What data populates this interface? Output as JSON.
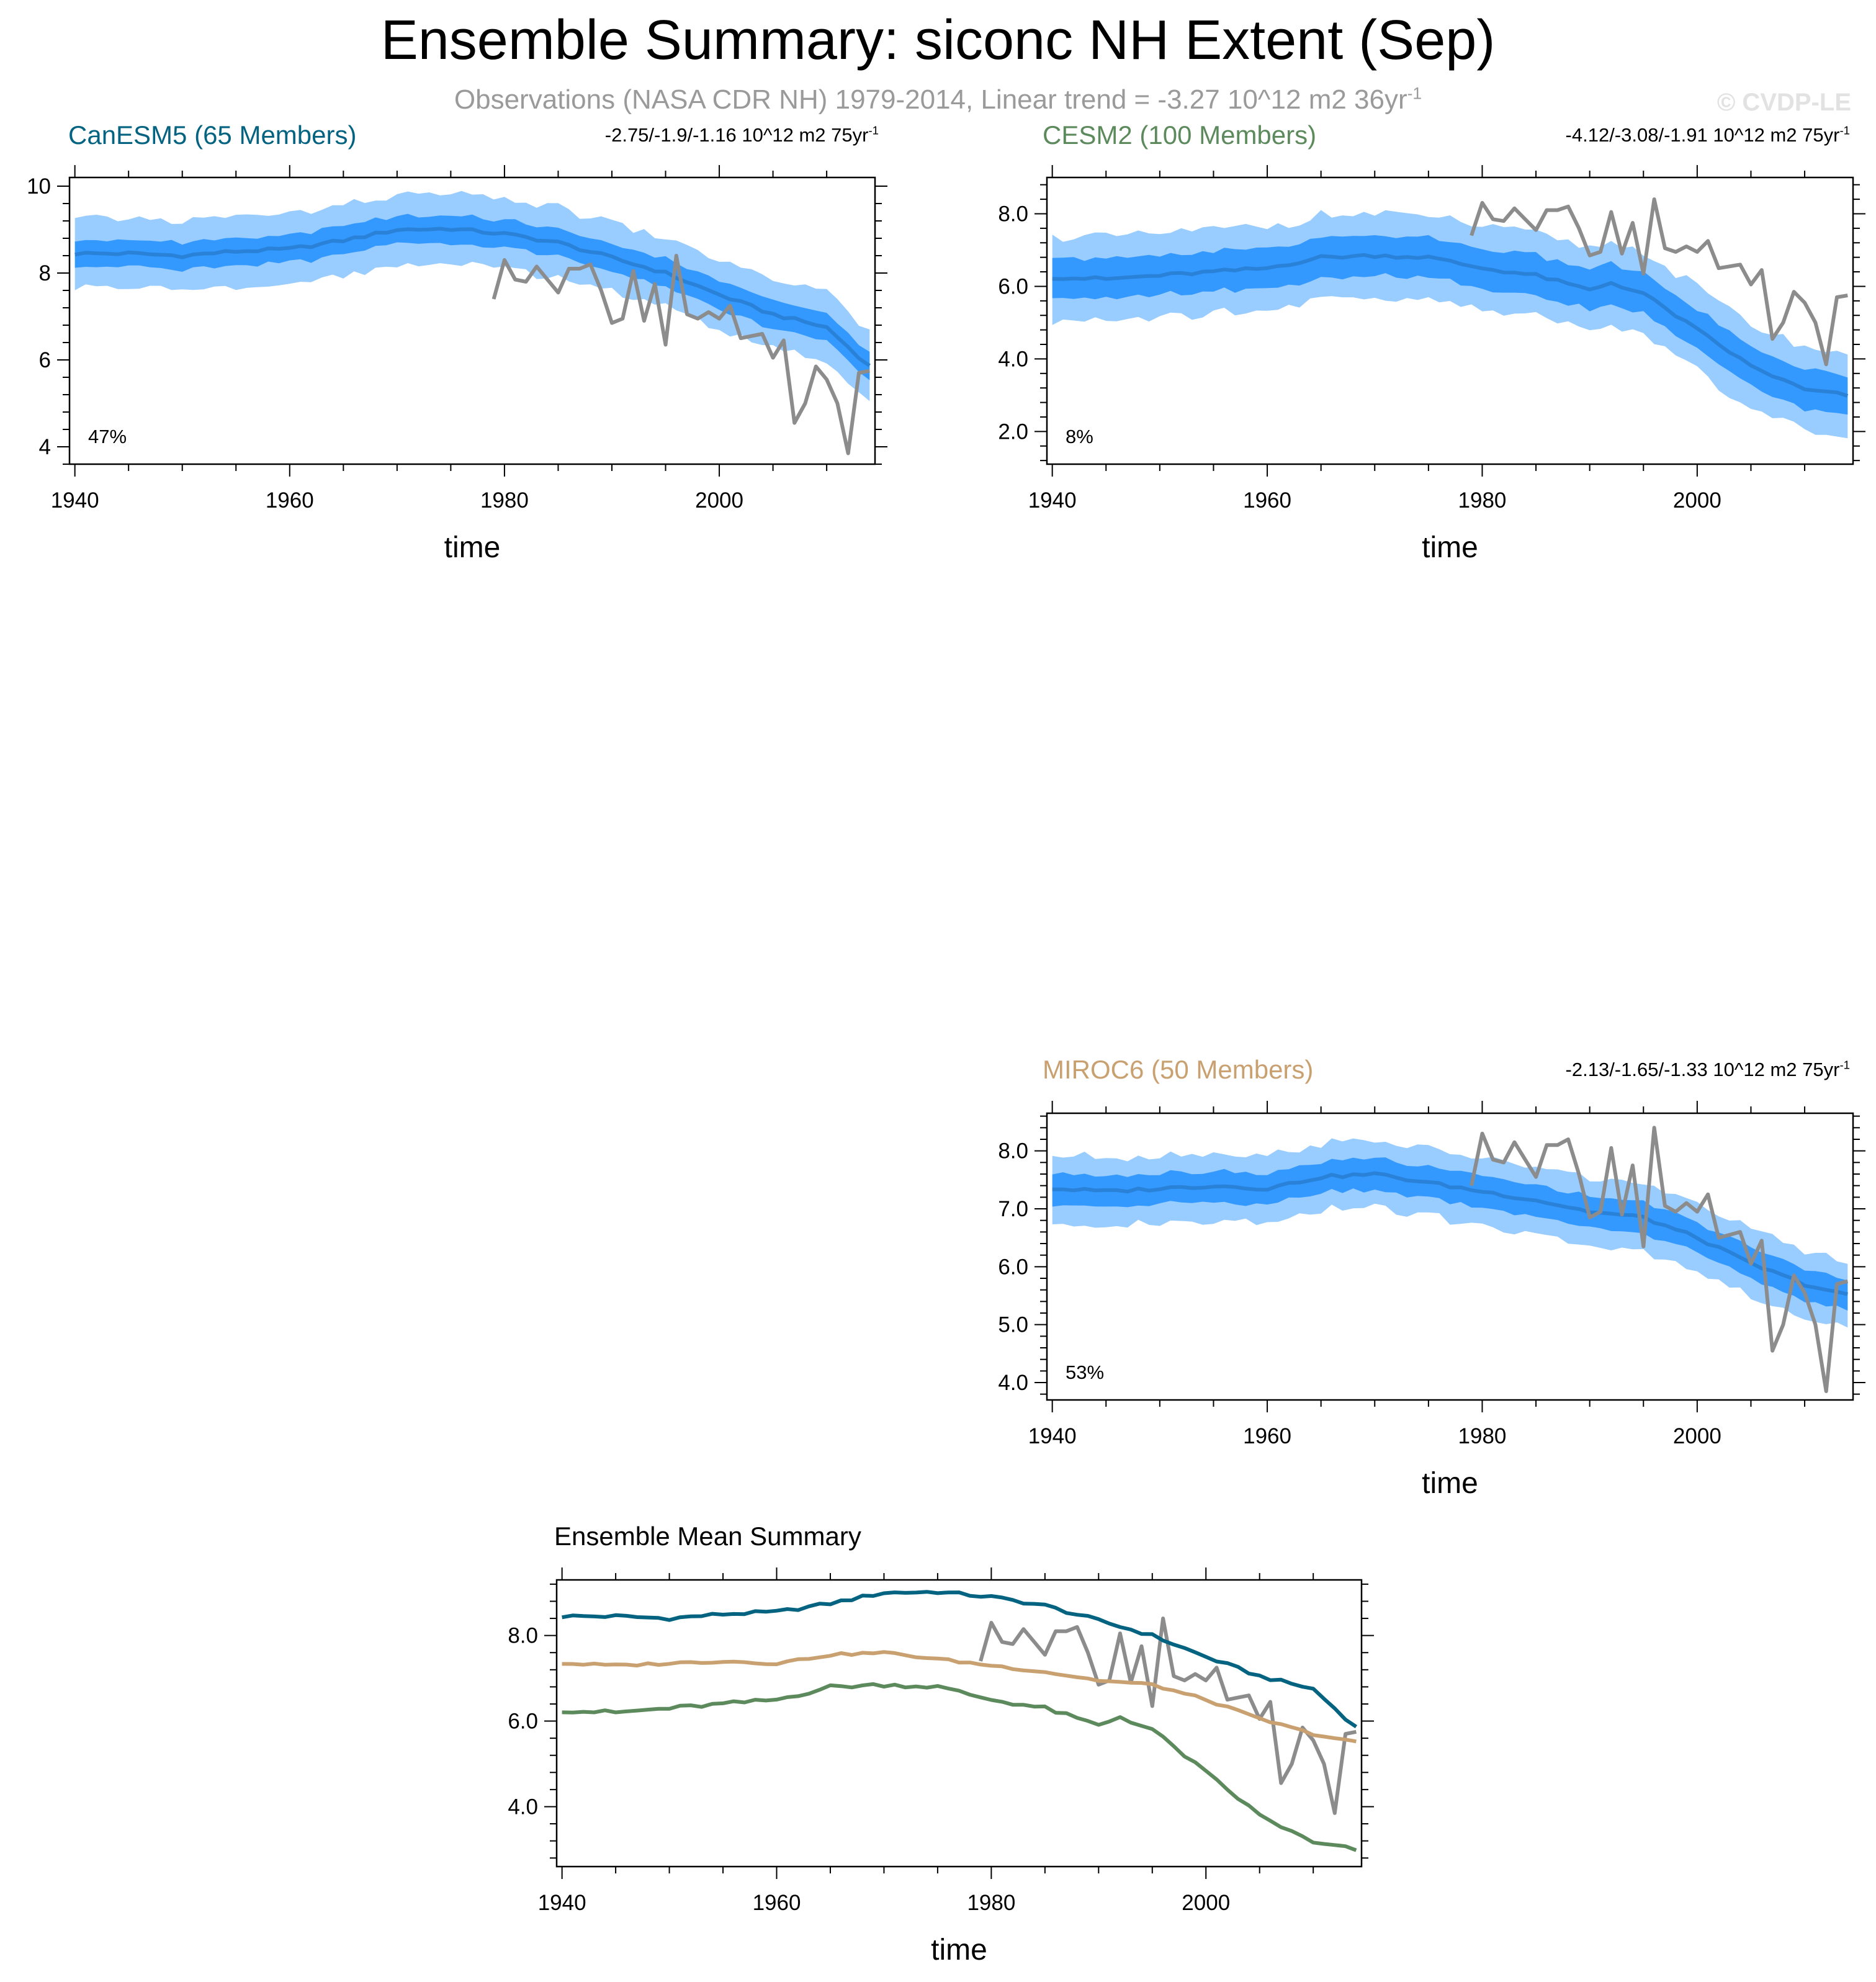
{
  "title": "Ensemble Summary: siconc NH Extent (Sep)",
  "subtitle": {
    "text": "Observations (NASA CDR NH) 1979-2014, Linear trend = -3.27 10^12 m2 36yr",
    "superscript": "-1"
  },
  "copyright": "© CVDP-LE",
  "colors": {
    "band_outer": "#99ccff",
    "band_inner": "#3399ff",
    "ens_mean": "#2a82d8",
    "obs": "#8c8c8c",
    "canesm5": "#046380",
    "cesm2": "#5c8a5c",
    "miroc6": "#c9a070"
  },
  "chart_data": [
    {
      "id": "canesm5",
      "type": "line",
      "title": "CanESM5 (65 Members)",
      "title_color": "#046380",
      "trend_text": "-2.75/-1.9/-1.16 10^12 m2 75yr",
      "trend_sup": "-1",
      "percent_label": "47%",
      "xlabel": "time",
      "xlim": [
        1939.5,
        2014.5
      ],
      "xticks": [
        1940,
        1960,
        1980,
        2000
      ],
      "ylim": [
        3.6,
        10.2
      ],
      "yticks": [
        4,
        6,
        8,
        10
      ],
      "ytick_labels": [
        "4",
        "6",
        "8",
        "10"
      ],
      "band_outer_halfwidth": 0.8,
      "band_inner_halfwidth": 0.32,
      "mean_keypoints": [
        [
          1940,
          8.45
        ],
        [
          1945,
          8.45
        ],
        [
          1950,
          8.4
        ],
        [
          1955,
          8.5
        ],
        [
          1960,
          8.55
        ],
        [
          1965,
          8.75
        ],
        [
          1970,
          9.0
        ],
        [
          1975,
          9.02
        ],
        [
          1980,
          8.9
        ],
        [
          1985,
          8.7
        ],
        [
          1990,
          8.35
        ],
        [
          1995,
          8.0
        ],
        [
          2000,
          7.5
        ],
        [
          2005,
          7.05
        ],
        [
          2010,
          6.75
        ],
        [
          2014,
          5.85
        ]
      ]
    },
    {
      "id": "cesm2",
      "type": "line",
      "title": "CESM2 (100 Members)",
      "title_color": "#5c8a5c",
      "trend_text": "-4.12/-3.08/-1.91 10^12 m2 75yr",
      "trend_sup": "-1",
      "percent_label": "8%",
      "xlabel": "time",
      "xlim": [
        1939.5,
        2014.5
      ],
      "xticks": [
        1940,
        1960,
        1980,
        2000
      ],
      "ylim": [
        1.1,
        9.0
      ],
      "yticks": [
        2.0,
        4.0,
        6.0,
        8.0
      ],
      "ytick_labels": [
        "2.0",
        "4.0",
        "6.0",
        "8.0"
      ],
      "band_outer_halfwidth": 1.15,
      "band_inner_halfwidth": 0.55,
      "mean_keypoints": [
        [
          1940,
          6.25
        ],
        [
          1945,
          6.2
        ],
        [
          1950,
          6.3
        ],
        [
          1955,
          6.4
        ],
        [
          1960,
          6.5
        ],
        [
          1965,
          6.8
        ],
        [
          1970,
          6.85
        ],
        [
          1975,
          6.8
        ],
        [
          1980,
          6.5
        ],
        [
          1985,
          6.3
        ],
        [
          1990,
          5.9
        ],
        [
          1992,
          6.1
        ],
        [
          1995,
          5.8
        ],
        [
          2000,
          4.8
        ],
        [
          2005,
          3.8
        ],
        [
          2010,
          3.15
        ],
        [
          2014,
          3.0
        ]
      ]
    },
    {
      "id": "miroc6",
      "type": "line",
      "title": "MIROC6 (50 Members)",
      "title_color": "#c9a070",
      "trend_text": "-2.13/-1.65/-1.33 10^12 m2 75yr",
      "trend_sup": "-1",
      "percent_label": "53%",
      "xlabel": "time",
      "xlim": [
        1939.5,
        2014.5
      ],
      "xticks": [
        1940,
        1960,
        1980,
        2000
      ],
      "ylim": [
        3.7,
        8.65
      ],
      "yticks": [
        4.0,
        5.0,
        6.0,
        7.0,
        8.0
      ],
      "ytick_labels": [
        "4.0",
        "5.0",
        "6.0",
        "7.0",
        "8.0"
      ],
      "band_outer_halfwidth": 0.58,
      "band_inner_halfwidth": 0.27,
      "mean_keypoints": [
        [
          1940,
          7.35
        ],
        [
          1945,
          7.3
        ],
        [
          1950,
          7.35
        ],
        [
          1955,
          7.4
        ],
        [
          1960,
          7.35
        ],
        [
          1965,
          7.55
        ],
        [
          1970,
          7.6
        ],
        [
          1975,
          7.45
        ],
        [
          1980,
          7.3
        ],
        [
          1985,
          7.15
        ],
        [
          1990,
          6.95
        ],
        [
          1995,
          6.85
        ],
        [
          2000,
          6.5
        ],
        [
          2005,
          6.05
        ],
        [
          2010,
          5.7
        ],
        [
          2014,
          5.5
        ]
      ]
    },
    {
      "id": "ensemble-mean",
      "type": "line",
      "title": "Ensemble Mean Summary",
      "xlabel": "time",
      "xlim": [
        1939.5,
        2014.5
      ],
      "xticks": [
        1940,
        1960,
        1980,
        2000
      ],
      "ylim": [
        2.6,
        9.3
      ],
      "yticks": [
        4.0,
        6.0,
        8.0
      ],
      "ytick_labels": [
        "4.0",
        "6.0",
        "8.0"
      ],
      "series": [
        {
          "name": "CanESM5",
          "color": "#046380",
          "ref": "canesm5"
        },
        {
          "name": "CESM2",
          "color": "#5c8a5c",
          "ref": "cesm2"
        },
        {
          "name": "MIROC6",
          "color": "#c9a070",
          "ref": "miroc6"
        }
      ]
    }
  ],
  "observations": {
    "name": "NASA CDR NH",
    "years": [
      1979,
      1980,
      1981,
      1982,
      1983,
      1984,
      1985,
      1986,
      1987,
      1988,
      1989,
      1990,
      1991,
      1992,
      1993,
      1994,
      1995,
      1996,
      1997,
      1998,
      1999,
      2000,
      2001,
      2002,
      2003,
      2004,
      2005,
      2006,
      2007,
      2008,
      2009,
      2010,
      2011,
      2012,
      2013,
      2014
    ],
    "values": [
      7.4,
      8.3,
      7.85,
      7.8,
      8.15,
      7.85,
      7.55,
      8.1,
      8.1,
      8.2,
      7.6,
      6.85,
      6.95,
      8.05,
      6.9,
      7.75,
      6.35,
      8.4,
      7.05,
      6.95,
      7.1,
      6.95,
      7.25,
      6.5,
      6.55,
      6.6,
      6.05,
      6.45,
      4.55,
      5.0,
      5.85,
      5.55,
      5.0,
      3.85,
      5.7,
      5.75
    ]
  }
}
